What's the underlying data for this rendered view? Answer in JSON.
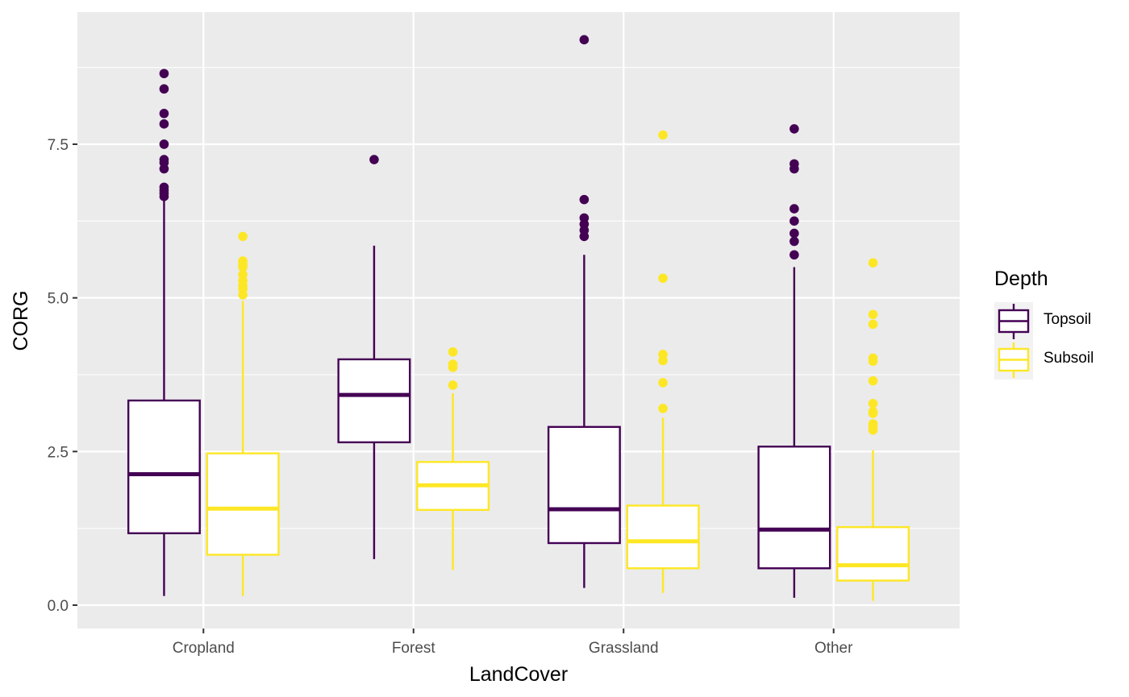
{
  "chart_data": {
    "type": "boxplot",
    "xlabel": "LandCover",
    "ylabel": "CORG",
    "categories": [
      "Cropland",
      "Forest",
      "Grassland",
      "Other"
    ],
    "y_ticks": [
      0.0,
      2.5,
      5.0,
      7.5
    ],
    "y_tick_labels": [
      "0.0",
      "2.5",
      "5.0",
      "7.5"
    ],
    "ylim": [
      -0.38,
      9.65
    ],
    "grid": true,
    "legend": {
      "title": "Depth",
      "position": "right",
      "entries": [
        "Topsoil",
        "Subsoil"
      ]
    },
    "series": [
      {
        "name": "Topsoil",
        "color": "#440154",
        "boxes": [
          {
            "category": "Cropland",
            "min": 0.15,
            "q1": 1.17,
            "median": 2.13,
            "q3": 3.33,
            "max": 6.6,
            "outliers": [
              8.65,
              8.4,
              8.0,
              7.83,
              7.5,
              7.25,
              7.2,
              7.1,
              6.8,
              6.75,
              6.7,
              6.65
            ]
          },
          {
            "category": "Forest",
            "min": 0.75,
            "q1": 2.65,
            "median": 3.42,
            "q3": 4.0,
            "max": 5.85,
            "outliers": [
              7.25
            ]
          },
          {
            "category": "Grassland",
            "min": 0.28,
            "q1": 1.01,
            "median": 1.56,
            "q3": 2.9,
            "max": 5.7,
            "outliers": [
              9.2,
              6.6,
              6.3,
              6.2,
              6.1,
              6.0
            ]
          },
          {
            "category": "Other",
            "min": 0.12,
            "q1": 0.6,
            "median": 1.23,
            "q3": 2.58,
            "max": 5.5,
            "outliers": [
              7.75,
              7.18,
              7.1,
              6.45,
              6.25,
              6.05,
              5.92,
              5.7
            ]
          }
        ]
      },
      {
        "name": "Subsoil",
        "color": "#FDE725",
        "boxes": [
          {
            "category": "Cropland",
            "min": 0.15,
            "q1": 0.82,
            "median": 1.57,
            "q3": 2.47,
            "max": 4.95,
            "outliers": [
              6.0,
              5.6,
              5.55,
              5.5,
              5.38,
              5.28,
              5.2,
              5.15,
              5.05
            ]
          },
          {
            "category": "Forest",
            "min": 0.57,
            "q1": 1.55,
            "median": 1.95,
            "q3": 2.33,
            "max": 3.45,
            "outliers": [
              4.12,
              3.92,
              3.87,
              3.58
            ]
          },
          {
            "category": "Grassland",
            "min": 0.2,
            "q1": 0.6,
            "median": 1.04,
            "q3": 1.62,
            "max": 3.05,
            "outliers": [
              7.65,
              5.32,
              4.08,
              3.98,
              3.62,
              3.2
            ]
          },
          {
            "category": "Other",
            "min": 0.07,
            "q1": 0.4,
            "median": 0.65,
            "q3": 1.27,
            "max": 2.52,
            "outliers": [
              5.57,
              4.73,
              4.57,
              4.02,
              3.97,
              3.65,
              3.28,
              3.15,
              3.12,
              2.95,
              2.9,
              2.85
            ]
          }
        ]
      }
    ]
  }
}
